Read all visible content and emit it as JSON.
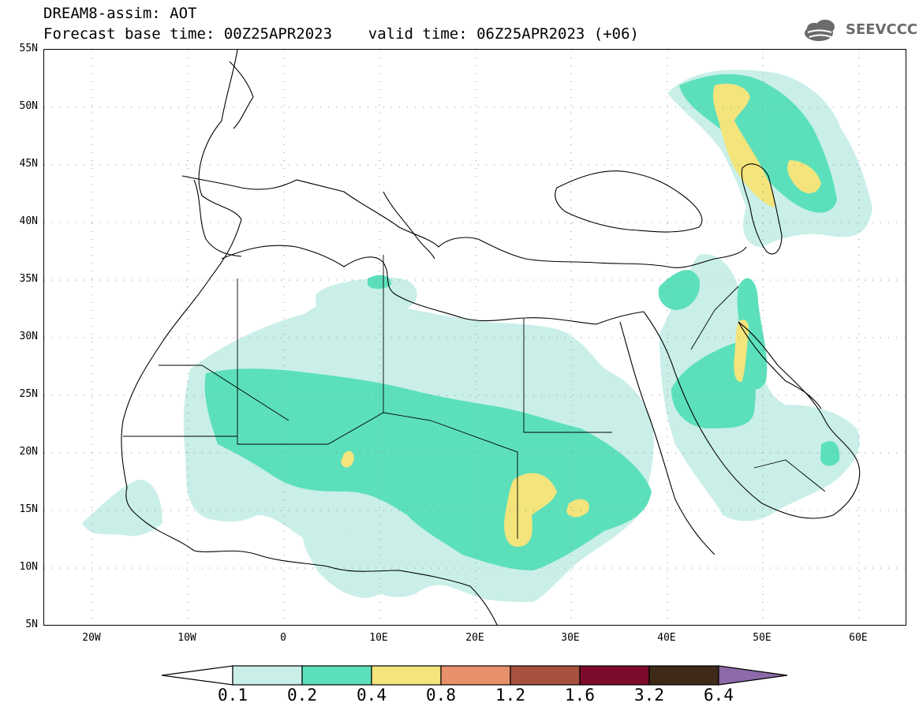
{
  "title": {
    "line1": "DREAM8-assim: AOT",
    "line2": "Forecast base time: 00Z25APR2023    valid time: 06Z25APR2023 (+06)"
  },
  "logo": {
    "text": "SEEVCCC",
    "icon": "cloud-icon"
  },
  "map": {
    "lat_labels": [
      "55N",
      "50N",
      "45N",
      "40N",
      "35N",
      "30N",
      "25N",
      "20N",
      "15N",
      "10N",
      "5N"
    ],
    "lon_labels": [
      "20W",
      "10W",
      "0",
      "10E",
      "20E",
      "30E",
      "40E",
      "50E",
      "60E"
    ],
    "extent": {
      "lon": [
        -25,
        65
      ],
      "lat": [
        5,
        55
      ]
    },
    "grid": true
  },
  "colorbar": {
    "labels": [
      "0.1",
      "0.2",
      "0.4",
      "0.8",
      "1.2",
      "1.6",
      "3.2",
      "6.4"
    ],
    "colors": [
      "#ffffff",
      "#c9efe8",
      "#5ce0bb",
      "#f3e47c",
      "#e7906a",
      "#a8513f",
      "#7c0b2b",
      "#3e2a17",
      "#8d6aa8"
    ]
  }
}
